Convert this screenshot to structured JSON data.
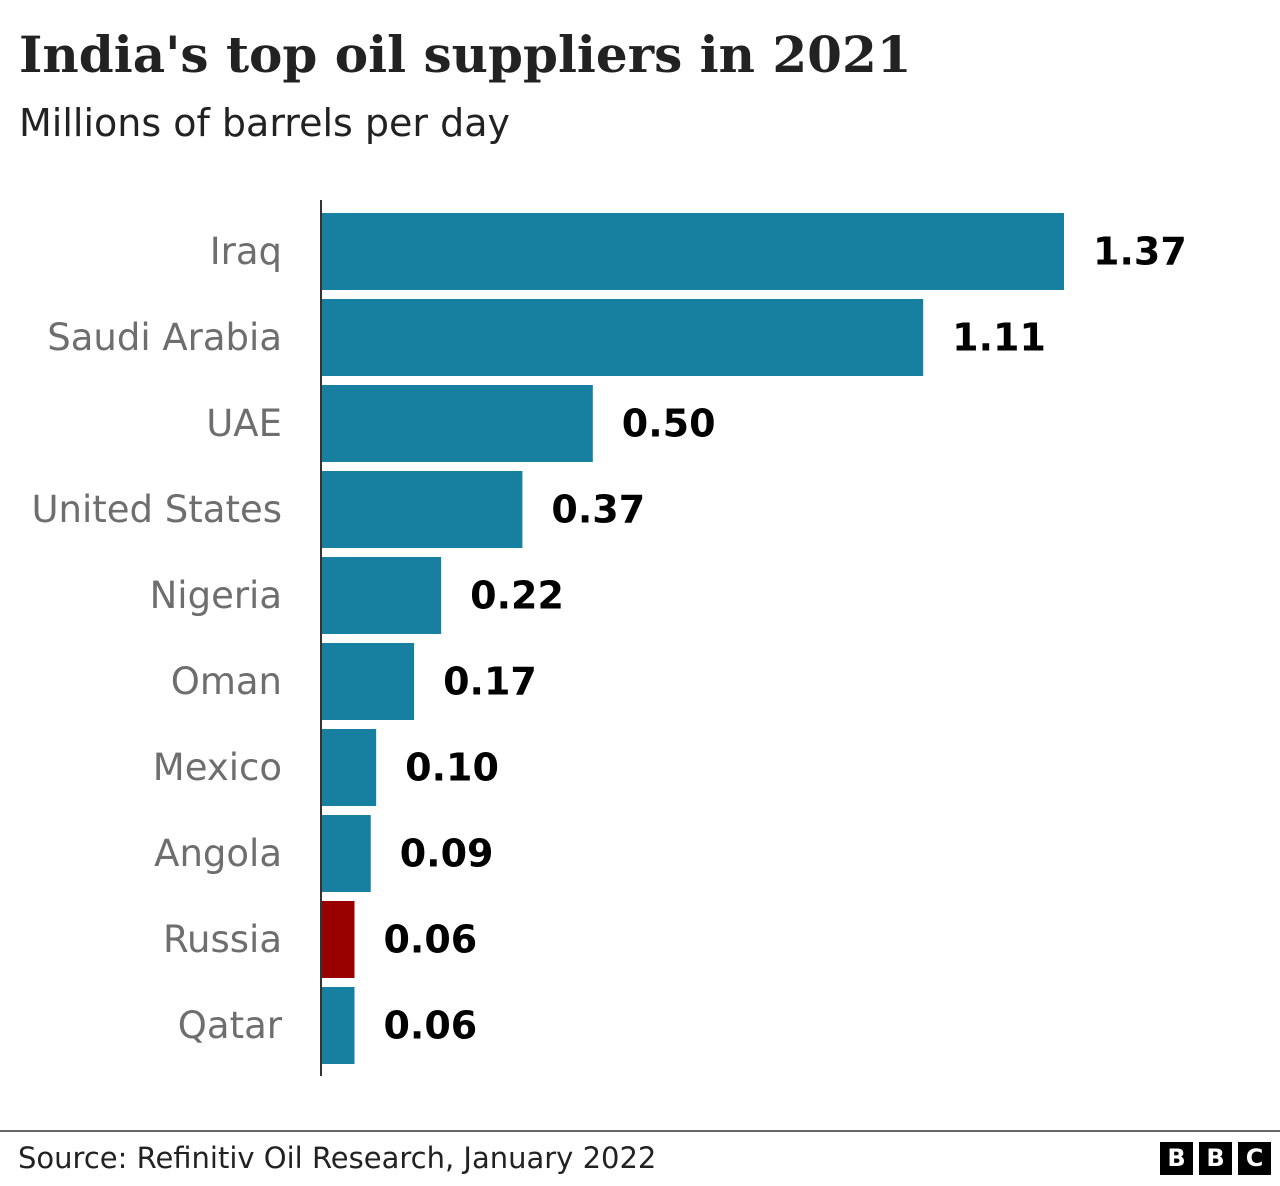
{
  "title": "India's top oil suppliers in 2021",
  "subtitle": "Millions of barrels per day",
  "source": "Source: Refinitiv Oil Research, January 2022",
  "logo": {
    "letters": [
      "B",
      "B",
      "C"
    ]
  },
  "colors": {
    "bar": "#1780a1",
    "highlight": "#990000",
    "axis": "#333333"
  },
  "chart_data": {
    "type": "bar",
    "orientation": "horizontal",
    "title": "India's top oil suppliers in 2021",
    "subtitle": "Millions of barrels per day",
    "categories": [
      "Iraq",
      "Saudi Arabia",
      "UAE",
      "United States",
      "Nigeria",
      "Oman",
      "Mexico",
      "Angola",
      "Russia",
      "Qatar"
    ],
    "values": [
      1.37,
      1.11,
      0.5,
      0.37,
      0.22,
      0.17,
      0.1,
      0.09,
      0.06,
      0.06
    ],
    "value_labels": [
      "1.37",
      "1.11",
      "0.50",
      "0.37",
      "0.22",
      "0.17",
      "0.10",
      "0.09",
      "0.06",
      "0.06"
    ],
    "highlighted": [
      "Russia"
    ],
    "xlim": [
      0,
      1.37
    ],
    "grid": false,
    "legend": "none"
  }
}
